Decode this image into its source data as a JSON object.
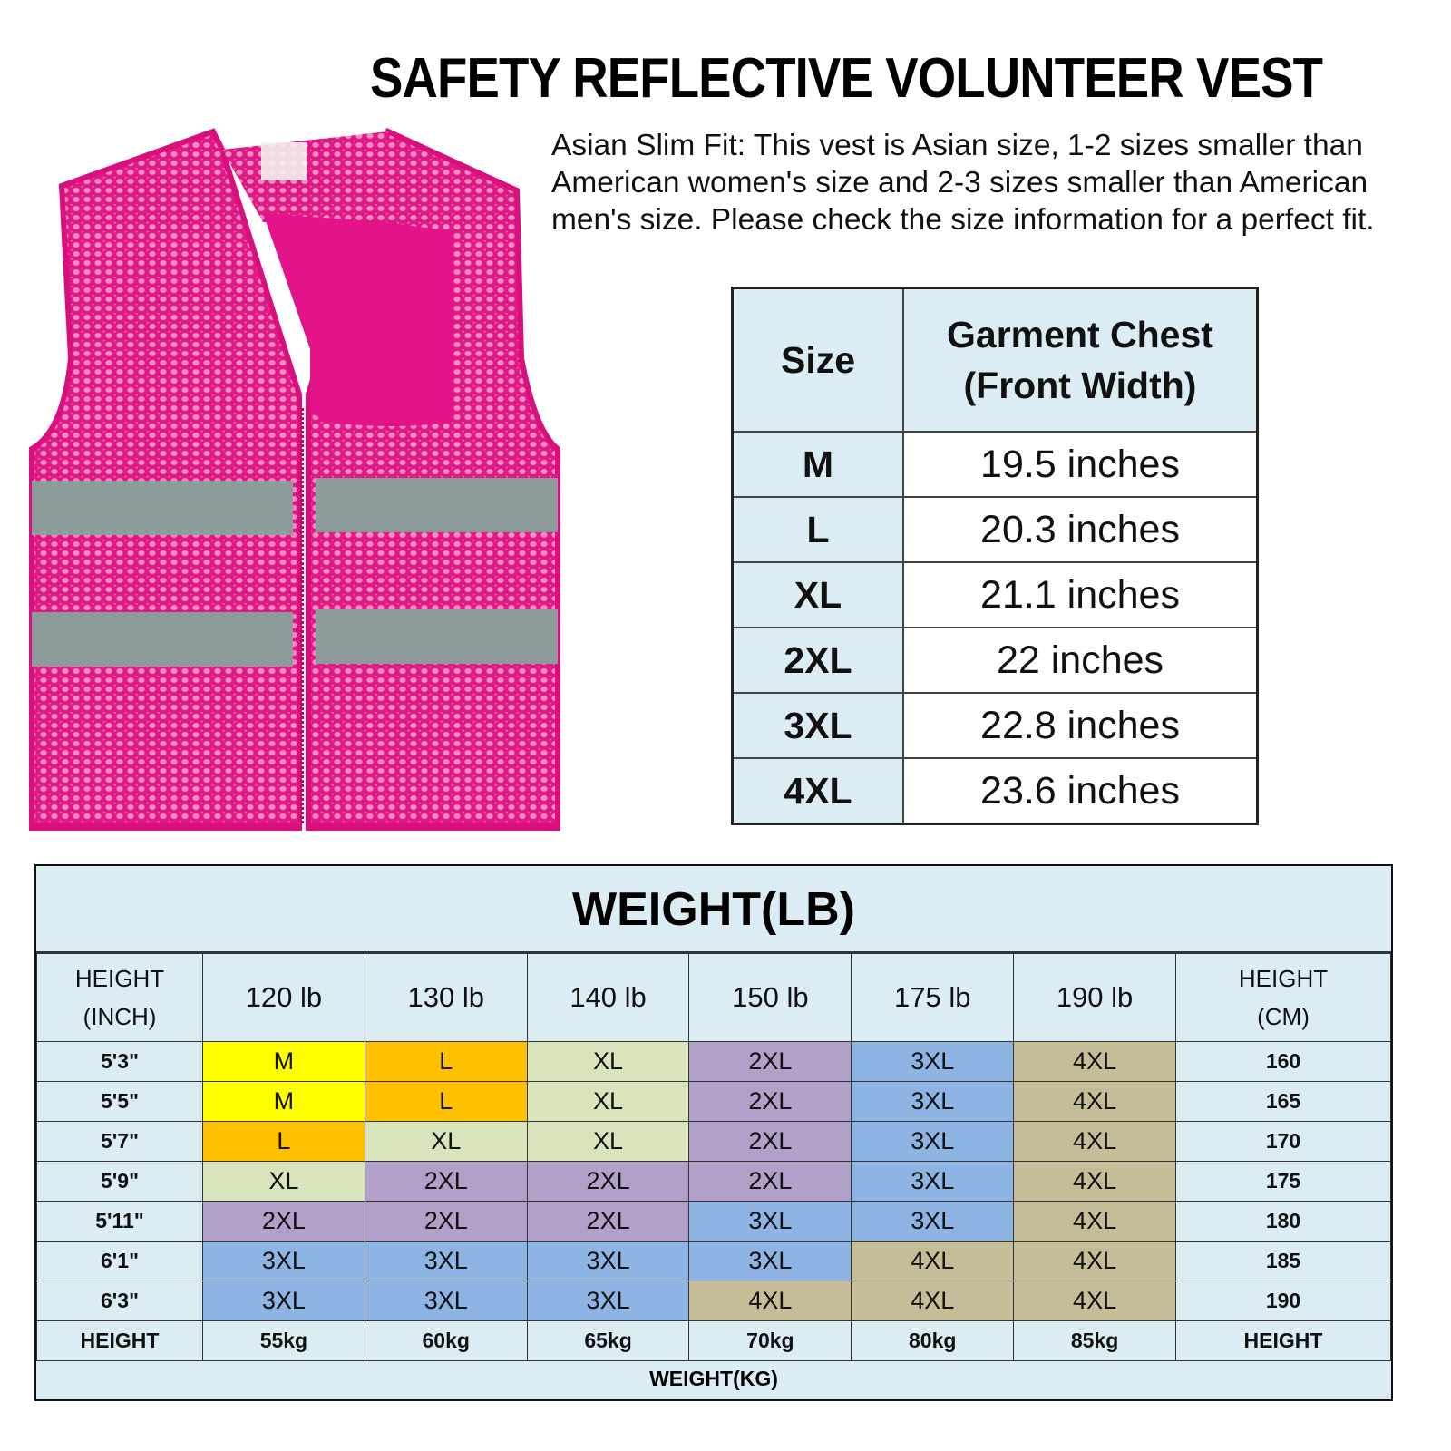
{
  "header": {
    "title": "SAFETY REFLECTIVE VOLUNTEER VEST",
    "description": "Asian Slim Fit: This vest is Asian size, 1-2 sizes smaller than American women's size and 2-3 sizes smaller than American men's size. Please check the size information for a perfect fit."
  },
  "product_image": {
    "alt": "pink mesh safety vest with two grey reflective stripes and front zipper",
    "colors": {
      "vest": "#e8178a",
      "stripe": "#8a9a98",
      "label": "#f4f0ec"
    }
  },
  "chest_table": {
    "headers": {
      "size": "Size",
      "chest_line1": "Garment Chest",
      "chest_line2": "(Front Width)"
    },
    "rows": [
      {
        "size": "M",
        "chest": "19.5 inches"
      },
      {
        "size": "L",
        "chest": "20.3 inches"
      },
      {
        "size": "XL",
        "chest": "21.1 inches"
      },
      {
        "size": "2XL",
        "chest": "22 inches"
      },
      {
        "size": "3XL",
        "chest": "22.8 inches"
      },
      {
        "size": "4XL",
        "chest": "23.6 inches"
      }
    ]
  },
  "size_chart": {
    "title": "WEIGHT(LB)",
    "height_inch_label_1": "HEIGHT",
    "height_inch_label_2": "(INCH)",
    "height_cm_label_1": "HEIGHT",
    "height_cm_label_2": "(CM)",
    "weights_lb": [
      "120 lb",
      "130 lb",
      "140 lb",
      "150 lb",
      "175 lb",
      "190 lb"
    ],
    "weights_kg": [
      "55kg",
      "60kg",
      "65kg",
      "70kg",
      "80kg",
      "85kg"
    ],
    "kg_row_left": "HEIGHT",
    "kg_row_right": "HEIGHT",
    "footer": "WEIGHT(KG)",
    "size_colors": {
      "M": "#ffff00",
      "L": "#ffc000",
      "XL": "#d8e4bc",
      "2XL": "#b1a0c7",
      "3XL": "#8db4e2",
      "4XL": "#c4bd97"
    },
    "rows": [
      {
        "inch": "5'3\"",
        "cm": "160",
        "sizes": [
          "M",
          "L",
          "XL",
          "2XL",
          "3XL",
          "4XL"
        ]
      },
      {
        "inch": "5'5\"",
        "cm": "165",
        "sizes": [
          "M",
          "L",
          "XL",
          "2XL",
          "3XL",
          "4XL"
        ]
      },
      {
        "inch": "5'7\"",
        "cm": "170",
        "sizes": [
          "L",
          "XL",
          "XL",
          "2XL",
          "3XL",
          "4XL"
        ]
      },
      {
        "inch": "5'9\"",
        "cm": "175",
        "sizes": [
          "XL",
          "2XL",
          "2XL",
          "2XL",
          "3XL",
          "4XL"
        ]
      },
      {
        "inch": "5'11\"",
        "cm": "180",
        "sizes": [
          "2XL",
          "2XL",
          "2XL",
          "3XL",
          "3XL",
          "4XL"
        ]
      },
      {
        "inch": "6'1\"",
        "cm": "185",
        "sizes": [
          "3XL",
          "3XL",
          "3XL",
          "3XL",
          "4XL",
          "4XL"
        ]
      },
      {
        "inch": "6'3\"",
        "cm": "190",
        "sizes": [
          "3XL",
          "3XL",
          "3XL",
          "4XL",
          "4XL",
          "4XL"
        ]
      }
    ]
  }
}
